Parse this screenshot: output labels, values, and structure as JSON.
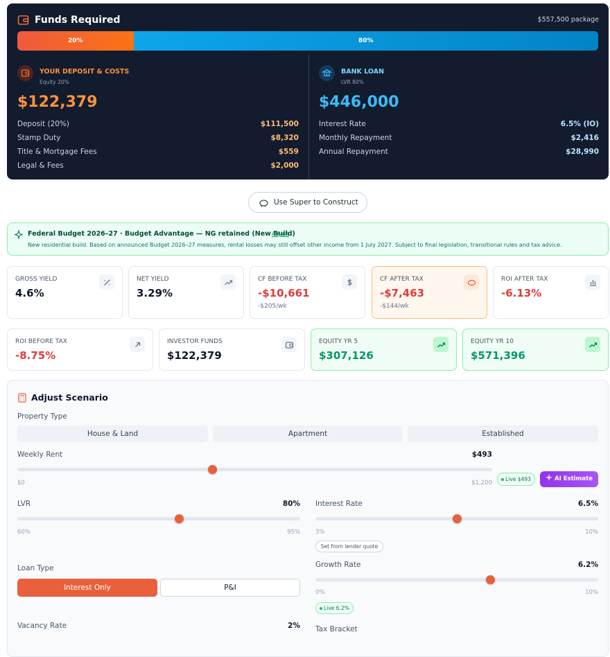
{
  "funds": {
    "title": "Funds Required",
    "package": "$557,500 package",
    "split": [
      {
        "label": "20%",
        "value": 20
      },
      {
        "label": "80%",
        "value": 80
      }
    ],
    "deposit": {
      "label": "YOUR DEPOSIT & COSTS",
      "sub": "Equity 20%",
      "amount": "$122,379",
      "rows": [
        {
          "label": "Deposit (20%)",
          "value": "$111,500"
        },
        {
          "label": "Stamp Duty",
          "value": "$8,320"
        },
        {
          "label": "Title & Mortgage Fees",
          "value": "$559"
        },
        {
          "label": "Legal & Fees",
          "value": "$2,000"
        }
      ]
    },
    "loan": {
      "label": "BANK LOAN",
      "sub": "LVR 80%",
      "amount": "$446,000",
      "rows": [
        {
          "label": "Interest Rate",
          "value": "6.5% (IO)"
        },
        {
          "label": "Monthly Repayment",
          "value": "$2,416"
        },
        {
          "label": "Annual Repayment",
          "value": "$28,990"
        }
      ]
    }
  },
  "super_button": "Use Super to Construct",
  "notice": {
    "title": "Federal Budget 2026–27 · Budget Advantage — NG retained (New Build)",
    "link": "Adjust",
    "text": "New residential build. Based on announced Budget 2026–27 measures, rental losses may still offset other income from 1 July 2027. Subject to final legislation, transitional rules and tax advice."
  },
  "metrics_row1": [
    {
      "label": "GROSS YIELD",
      "value": "4.6%"
    },
    {
      "label": "NET YIELD",
      "value": "3.29%"
    },
    {
      "label": "CF BEFORE TAX",
      "value": "-$10,661",
      "sub": "-$205/wk"
    },
    {
      "label": "CF AFTER TAX",
      "value": "-$7,463",
      "sub": "-$144/wk"
    },
    {
      "label": "ROI AFTER TAX",
      "value": "-6.13%"
    }
  ],
  "metrics_row2": [
    {
      "label": "ROI BEFORE TAX",
      "value": "-8.75%"
    },
    {
      "label": "INVESTOR FUNDS",
      "value": "$122,379"
    },
    {
      "label": "EQUITY YR 5",
      "value": "$307,126"
    },
    {
      "label": "EQUITY YR 10",
      "value": "$571,396"
    }
  ],
  "scenario": {
    "title": "Adjust Scenario",
    "property_type": {
      "label": "Property Type",
      "options": [
        "House & Land",
        "Apartment",
        "Established"
      ]
    },
    "weekly_rent": {
      "label": "Weekly Rent",
      "display": "$493",
      "value": 493,
      "min": 0,
      "max": 1200,
      "min_label": "$0",
      "max_label": "$1,200",
      "live": "Live $493",
      "ai": "AI Estimate"
    },
    "lvr": {
      "label": "LVR",
      "display": "80%",
      "value": 80,
      "min": 60,
      "max": 95,
      "min_label": "60%",
      "max_label": "95%"
    },
    "interest_rate": {
      "label": "Interest Rate",
      "display": "6.5%",
      "value": 6.5,
      "min": 3,
      "max": 10,
      "min_label": "3%",
      "max_label": "10%",
      "lender": "Set from lender quote"
    },
    "loan_type": {
      "label": "Loan Type",
      "options": [
        "Interest Only",
        "P&I"
      ]
    },
    "growth_rate": {
      "label": "Growth Rate",
      "display": "6.2%",
      "value": 6.2,
      "min": 0,
      "max": 10,
      "min_label": "0%",
      "max_label": "10%",
      "live": "Live 6.2%"
    },
    "vacancy_rate": {
      "label": "Vacancy Rate",
      "display": "2%"
    },
    "tax_bracket": {
      "label": "Tax Bracket"
    }
  }
}
